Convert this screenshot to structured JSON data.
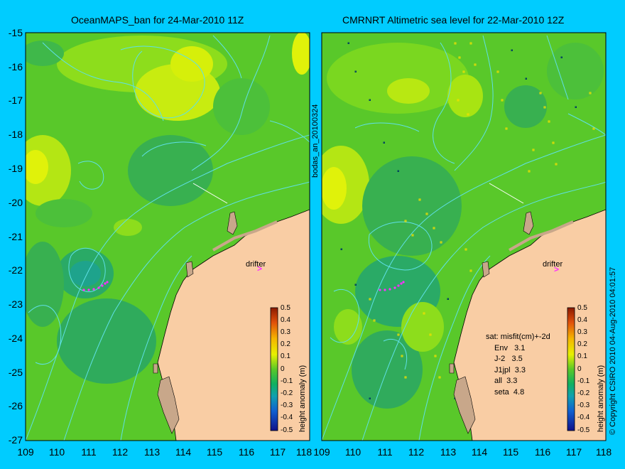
{
  "panels": [
    {
      "title": "OceanMAPS_ban for 24-Mar-2010 11Z"
    },
    {
      "title": "CMRNRT Altimetric sea level  for 22-Mar-2010 12Z"
    }
  ],
  "axes": {
    "y_ticks": [
      "-15",
      "-16",
      "-17",
      "-18",
      "-19",
      "-20",
      "-21",
      "-22",
      "-23",
      "-24",
      "-25",
      "-26",
      "-27"
    ],
    "x_ticks_left": [
      "109",
      "110",
      "111",
      "112",
      "113",
      "114",
      "115",
      "116",
      "117",
      "118"
    ],
    "x_ticks_right": [
      "109",
      "110",
      "111",
      "112",
      "113",
      "114",
      "115",
      "116",
      "117",
      "118"
    ]
  },
  "colorbar": {
    "ticks": [
      "0.5",
      "0.4",
      "0.3",
      "0.2",
      "0.1",
      "0",
      "-0.1",
      "-0.2",
      "-0.3",
      "-0.4",
      "-0.5"
    ],
    "label": "height anomaly (m)"
  },
  "drifter_label": "drifter",
  "side_label": "bodas_an_20100324",
  "copyright": "© Copyright CSIRO 2010   04-Aug-2010 04:01:57",
  "stats": {
    "header": "sat: misfit(cm)+-2d",
    "rows": [
      "Env   3.1",
      "J-2   3.5",
      "J1jpl  3.3",
      "all  3.3",
      "seta  4.8"
    ]
  },
  "colors": {
    "background": "#00ccff",
    "land": "#f9cda4",
    "field_base": "#59c82a",
    "contour": "#5fe0e6",
    "drifter_marker": "#ff2fff"
  }
}
